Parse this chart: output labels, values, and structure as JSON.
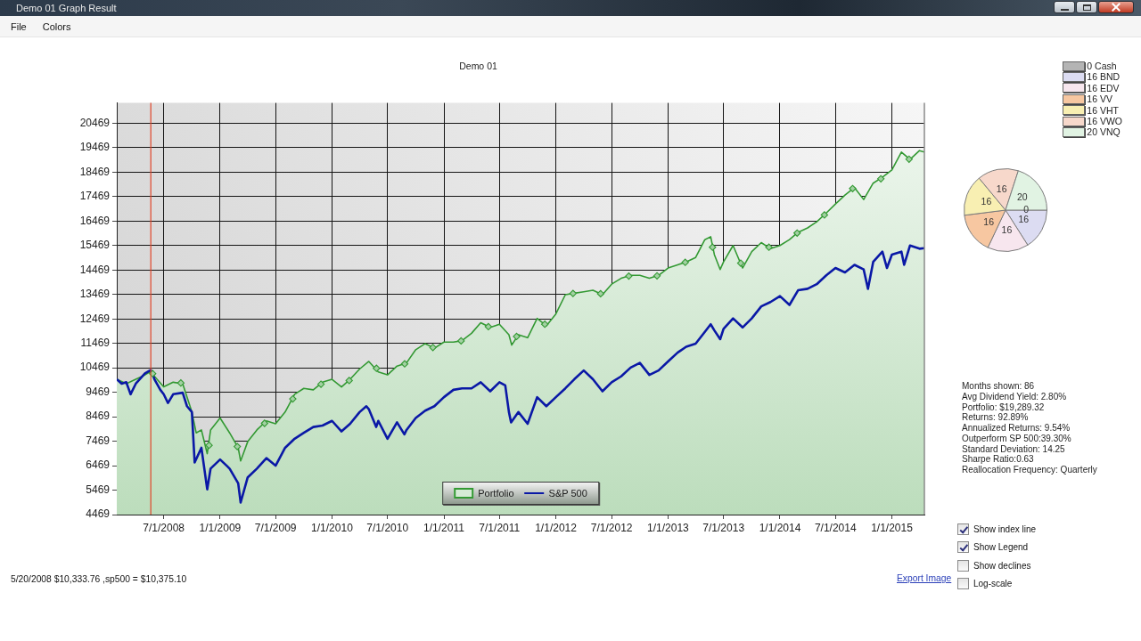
{
  "chart_data": [
    {
      "type": "other",
      "title": "Demo 01 Graph Result",
      "annotations": [
        "File",
        "Colors"
      ]
    },
    {
      "type": "line",
      "title": "Demo 01",
      "series": [
        {
          "name": "Portfolio",
          "type": "area",
          "color": "#339933",
          "x": [
            "2008-01-30",
            "2008-03-01",
            "2008-04-01",
            "2008-05-01",
            "2008-05-20",
            "2008-06-01",
            "2008-07-01",
            "2008-08-01",
            "2008-09-01",
            "2008-10-01",
            "2008-10-15",
            "2008-11-01",
            "2008-11-20",
            "2008-12-01",
            "2009-01-01",
            "2009-02-01",
            "2009-03-01",
            "2009-03-09",
            "2009-04-01",
            "2009-05-01",
            "2009-06-01",
            "2009-07-01",
            "2009-08-01",
            "2009-09-01",
            "2009-10-01",
            "2009-11-01",
            "2009-12-01",
            "2010-01-01",
            "2010-02-01",
            "2010-03-01",
            "2010-04-01",
            "2010-05-01",
            "2010-06-01",
            "2010-07-01",
            "2010-08-01",
            "2010-09-01",
            "2010-10-01",
            "2010-11-01",
            "2010-12-01",
            "2011-01-01",
            "2011-02-01",
            "2011-03-01",
            "2011-04-01",
            "2011-05-01",
            "2011-06-01",
            "2011-07-01",
            "2011-08-01",
            "2011-08-10",
            "2011-09-01",
            "2011-10-01",
            "2011-11-01",
            "2011-12-01",
            "2012-01-01",
            "2012-02-01",
            "2012-03-01",
            "2012-04-01",
            "2012-05-01",
            "2012-06-01",
            "2012-07-01",
            "2012-08-01",
            "2012-09-01",
            "2012-10-01",
            "2012-11-01",
            "2012-12-01",
            "2013-01-01",
            "2013-02-01",
            "2013-03-01",
            "2013-04-01",
            "2013-05-01",
            "2013-05-20",
            "2013-06-01",
            "2013-06-20",
            "2013-07-01",
            "2013-08-01",
            "2013-09-01",
            "2013-10-01",
            "2013-11-01",
            "2013-12-01",
            "2014-01-01",
            "2014-02-01",
            "2014-03-01",
            "2014-04-01",
            "2014-05-01",
            "2014-06-01",
            "2014-07-01",
            "2014-08-01",
            "2014-09-01",
            "2014-10-01",
            "2014-11-01",
            "2014-12-01",
            "2015-01-01",
            "2015-02-01",
            "2015-03-01",
            "2015-04-01",
            "2015-04-17"
          ],
          "values": [
            10000,
            9820,
            10000,
            10180,
            10330,
            10120,
            9690,
            9880,
            9820,
            8660,
            7810,
            7930,
            6960,
            7930,
            8420,
            7810,
            7200,
            6660,
            7450,
            7930,
            8300,
            8180,
            8660,
            9390,
            9630,
            9570,
            9880,
            10000,
            9690,
            10000,
            10420,
            10730,
            10300,
            10180,
            10540,
            10670,
            11210,
            11460,
            11270,
            11520,
            11520,
            11580,
            11880,
            12310,
            12120,
            12250,
            11820,
            11400,
            11820,
            11700,
            12490,
            12190,
            12670,
            13460,
            13520,
            13580,
            13640,
            13460,
            13890,
            14130,
            14250,
            14250,
            14130,
            14250,
            14550,
            14680,
            14800,
            14980,
            15710,
            15830,
            15100,
            14490,
            14800,
            15470,
            14550,
            15220,
            15590,
            15340,
            15470,
            15710,
            16010,
            16190,
            16440,
            16800,
            17170,
            17530,
            17840,
            17350,
            18020,
            18260,
            18560,
            19290,
            18990,
            19350,
            19290
          ]
        },
        {
          "name": "S&P 500",
          "type": "line",
          "color": "#0a18a6",
          "x": [
            "2008-01-30",
            "2008-02-15",
            "2008-03-01",
            "2008-03-15",
            "2008-04-01",
            "2008-05-01",
            "2008-05-20",
            "2008-06-01",
            "2008-06-20",
            "2008-07-01",
            "2008-07-15",
            "2008-08-01",
            "2008-09-01",
            "2008-09-15",
            "2008-10-01",
            "2008-10-10",
            "2008-11-01",
            "2008-11-20",
            "2008-12-01",
            "2009-01-01",
            "2009-02-01",
            "2009-03-01",
            "2009-03-09",
            "2009-04-01",
            "2009-05-01",
            "2009-06-01",
            "2009-07-01",
            "2009-08-01",
            "2009-09-01",
            "2009-10-01",
            "2009-11-01",
            "2009-12-01",
            "2010-01-01",
            "2010-02-01",
            "2010-03-01",
            "2010-04-01",
            "2010-04-23",
            "2010-05-01",
            "2010-05-25",
            "2010-06-01",
            "2010-07-01",
            "2010-08-01",
            "2010-08-25",
            "2010-09-01",
            "2010-10-01",
            "2010-11-01",
            "2010-12-01",
            "2011-01-01",
            "2011-02-01",
            "2011-03-01",
            "2011-04-01",
            "2011-05-01",
            "2011-06-01",
            "2011-07-01",
            "2011-07-20",
            "2011-08-01",
            "2011-08-08",
            "2011-09-01",
            "2011-10-01",
            "2011-11-01",
            "2011-12-01",
            "2012-01-01",
            "2012-02-01",
            "2012-03-01",
            "2012-04-01",
            "2012-05-01",
            "2012-06-01",
            "2012-07-01",
            "2012-08-01",
            "2012-09-01",
            "2012-10-01",
            "2012-11-01",
            "2012-12-01",
            "2013-01-01",
            "2013-02-01",
            "2013-03-01",
            "2013-04-01",
            "2013-05-01",
            "2013-05-20",
            "2013-06-01",
            "2013-06-20",
            "2013-07-01",
            "2013-08-01",
            "2013-09-01",
            "2013-10-01",
            "2013-11-01",
            "2013-12-01",
            "2014-01-01",
            "2014-02-01",
            "2014-03-01",
            "2014-04-01",
            "2014-05-01",
            "2014-06-01",
            "2014-07-01",
            "2014-08-01",
            "2014-09-01",
            "2014-10-01",
            "2014-10-15",
            "2014-11-01",
            "2014-12-01",
            "2014-12-16",
            "2015-01-01",
            "2015-02-01",
            "2015-02-10",
            "2015-03-01",
            "2015-04-01",
            "2015-04-17"
          ],
          "values": [
            10000,
            9820,
            9880,
            9390,
            9820,
            10240,
            10380,
            10000,
            9570,
            9390,
            9030,
            9390,
            9450,
            8900,
            8660,
            6600,
            7200,
            5500,
            6350,
            6720,
            6350,
            5750,
            4960,
            5990,
            6350,
            6780,
            6470,
            7200,
            7570,
            7810,
            8050,
            8110,
            8300,
            7870,
            8180,
            8660,
            8900,
            8780,
            8050,
            8300,
            7570,
            8240,
            7750,
            7930,
            8420,
            8720,
            8900,
            9270,
            9570,
            9630,
            9630,
            9880,
            9510,
            9880,
            9750,
            8660,
            8240,
            8660,
            8180,
            9270,
            8900,
            9270,
            9630,
            10000,
            10360,
            10000,
            9510,
            9880,
            10120,
            10480,
            10670,
            10180,
            10360,
            10730,
            11090,
            11330,
            11460,
            11940,
            12250,
            12000,
            11640,
            12060,
            12490,
            12120,
            12490,
            12980,
            13160,
            13400,
            13040,
            13640,
            13700,
            13890,
            14250,
            14550,
            14370,
            14680,
            14490,
            13700,
            14800,
            15220,
            14550,
            15100,
            15220,
            14680,
            15470,
            15340,
            15360
          ]
        },
        {
          "type": "scatter",
          "color": "#339933",
          "marker": "diamond",
          "x": [
            "2008-05-26",
            "2008-08-26",
            "2008-11-26",
            "2009-02-26",
            "2009-05-26",
            "2009-08-26",
            "2009-11-26",
            "2010-02-26",
            "2010-05-26",
            "2010-08-26",
            "2010-11-26",
            "2011-02-26",
            "2011-05-26",
            "2011-08-26",
            "2011-11-26",
            "2012-02-26",
            "2012-05-26",
            "2012-08-26",
            "2012-11-26",
            "2013-02-26",
            "2013-05-26",
            "2013-08-26",
            "2013-11-26",
            "2014-02-26",
            "2014-05-26",
            "2014-08-26",
            "2014-11-26",
            "2015-02-26"
          ],
          "values": [
            10230,
            9850,
            7300,
            7250,
            8200,
            9200,
            9800,
            9950,
            10450,
            10630,
            11300,
            11570,
            12150,
            11750,
            12250,
            13510,
            13500,
            14220,
            14230,
            14780,
            15400,
            14750,
            15400,
            15980,
            16720,
            17800,
            18200,
            19000
          ]
        }
      ],
      "xlim": [
        "2008-01-30",
        "2015-04-17"
      ],
      "xticks": [
        {
          "value": "2008-07-01",
          "label": "7/1/2008"
        },
        {
          "value": "2009-01-01",
          "label": "1/1/2009"
        },
        {
          "value": "2009-07-01",
          "label": "7/1/2009"
        },
        {
          "value": "2010-01-01",
          "label": "1/1/2010"
        },
        {
          "value": "2010-07-01",
          "label": "7/1/2010"
        },
        {
          "value": "2011-01-01",
          "label": "1/1/2011"
        },
        {
          "value": "2011-07-01",
          "label": "7/1/2011"
        },
        {
          "value": "2012-01-01",
          "label": "1/1/2012"
        },
        {
          "value": "2012-07-01",
          "label": "7/1/2012"
        },
        {
          "value": "2013-01-01",
          "label": "1/1/2013"
        },
        {
          "value": "2013-07-01",
          "label": "7/1/2013"
        },
        {
          "value": "2014-01-01",
          "label": "1/1/2014"
        },
        {
          "value": "2014-07-01",
          "label": "7/1/2014"
        },
        {
          "value": "2015-01-01",
          "label": "1/1/2015"
        }
      ],
      "ylim": [
        4469,
        21300
      ],
      "yticks": [
        4469,
        5469,
        6469,
        7469,
        8469,
        9469,
        10469,
        11469,
        12469,
        13469,
        14469,
        15469,
        16469,
        17469,
        18469,
        19469,
        20469
      ],
      "grid": true,
      "legend": "bottom",
      "ref_lines": [
        {
          "axis": "x",
          "value": "2008-05-20",
          "color": "#e0452a"
        }
      ],
      "annotations": [
        "5/20/2008 $10,333.76 ,sp500 = $10,375.10"
      ]
    },
    {
      "type": "pie",
      "categories": [
        "0 Cash",
        "16 BND",
        "16 EDV",
        "16 VV",
        "16 VHT",
        "16 VWO",
        "20 VNQ"
      ],
      "values": [
        0,
        16,
        16,
        16,
        16,
        16,
        20
      ],
      "colors": [
        "#b4b4b4",
        "#dcdcf2",
        "#f7e6ee",
        "#f7c7a1",
        "#f8efb2",
        "#f7d8cb",
        "#e1f3e3"
      ],
      "value_labels": [
        "0",
        "16",
        "16",
        "16",
        "16",
        "16",
        "20"
      ],
      "legend": "top right"
    },
    {
      "type": "other",
      "annotations": [
        "Months shown: 86",
        "Avg Dividend Yield: 2.80%",
        "Portfolio: $19,289.32",
        "Returns: 92.89%",
        "Annualized Returns: 9.54%",
        "Outperform SP 500:39.30%",
        "Standard Deviation: 14.25",
        "Sharpe Ratio:0.63",
        "Reallocation Frequency: Quarterly"
      ]
    },
    {
      "type": "other",
      "annotations": [
        "Show index line",
        "Show Legend",
        "Show declines",
        "Log-scale",
        "Export Image"
      ]
    }
  ]
}
